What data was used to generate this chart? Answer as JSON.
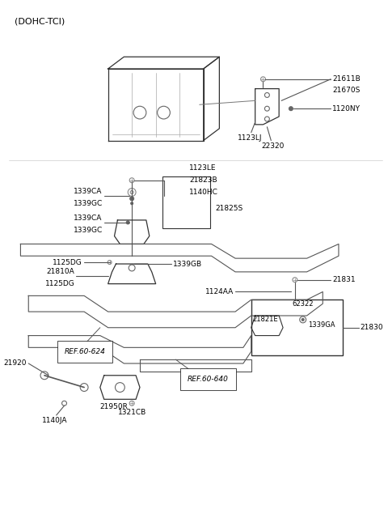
{
  "title": "(DOHC-TCI)",
  "bg_color": "#ffffff",
  "line_color": "#333333",
  "text_color": "#000000",
  "parts": {
    "top_section": {
      "bracket_label": "21670S",
      "bolt_top": "21611B",
      "bolt_side1": "1120NY",
      "bolt_side2": "1123LJ",
      "bolt_side3": "22320"
    },
    "mid_left_section": {
      "bolt_top": "1123LE",
      "washer": "21823B",
      "bracket_label": "21825S",
      "nut1": "1140HC",
      "bolt_pair1a": "1339CA",
      "bolt_pair1b": "1339GC",
      "bolt_pair2a": "1339CA",
      "bolt_pair2b": "1339GC",
      "mount_label": "21810A",
      "bolt_left1": "1125DG",
      "bolt_left2": "1125DG",
      "bolt_mid": "1339GB"
    },
    "bottom_right_section": {
      "bolt_top": "21831",
      "label_left": "1124AA",
      "inner_left": "21821E",
      "inner_center": "62322",
      "inner_right": "1339GA",
      "outer_label": "21830"
    },
    "bottom_section": {
      "ref1": "REF.60-624",
      "ref2": "REF.60-640",
      "label1": "21920",
      "label2": "21950R",
      "label3": "1140JA",
      "label4": "1321CB"
    }
  }
}
